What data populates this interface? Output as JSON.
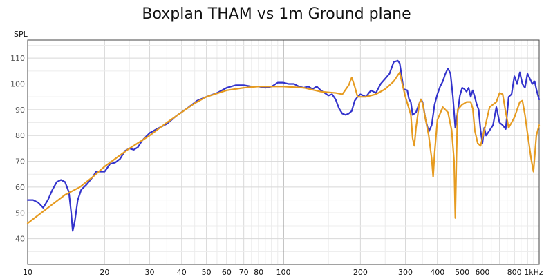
{
  "chart_data": {
    "type": "line",
    "title": "Boxplan THAM vs 1m Ground plane",
    "ylabel": "SPL",
    "xlabel": "",
    "x_scale": "log",
    "xlim": [
      10,
      1000
    ],
    "ylim": [
      30,
      117
    ],
    "grid": true,
    "x_ticks": [
      {
        "value": 10,
        "label": "10"
      },
      {
        "value": 20,
        "label": "20"
      },
      {
        "value": 30,
        "label": "30"
      },
      {
        "value": 40,
        "label": "40"
      },
      {
        "value": 50,
        "label": "50"
      },
      {
        "value": 60,
        "label": "60"
      },
      {
        "value": 70,
        "label": "70"
      },
      {
        "value": 80,
        "label": "80"
      },
      {
        "value": 100,
        "label": "100"
      },
      {
        "value": 200,
        "label": "200"
      },
      {
        "value": 300,
        "label": "300"
      },
      {
        "value": 400,
        "label": "400"
      },
      {
        "value": 500,
        "label": "500"
      },
      {
        "value": 600,
        "label": "600"
      },
      {
        "value": 800,
        "label": "800"
      },
      {
        "value": 1000,
        "label": "1kHz"
      }
    ],
    "y_ticks": [
      40,
      50,
      60,
      70,
      80,
      90,
      100,
      110
    ],
    "series": [
      {
        "color": "#3333cc",
        "points": [
          [
            10,
            55
          ],
          [
            10.5,
            55
          ],
          [
            11,
            54
          ],
          [
            11.5,
            52
          ],
          [
            12,
            55
          ],
          [
            12.5,
            59
          ],
          [
            13,
            62
          ],
          [
            13.5,
            62.8
          ],
          [
            14,
            62
          ],
          [
            14.5,
            58
          ],
          [
            14.8,
            50
          ],
          [
            15,
            43
          ],
          [
            15.3,
            47
          ],
          [
            15.7,
            55
          ],
          [
            16.2,
            59
          ],
          [
            17,
            61
          ],
          [
            18,
            64
          ],
          [
            18.5,
            66
          ],
          [
            19.5,
            66
          ],
          [
            20,
            66
          ],
          [
            21,
            69
          ],
          [
            22,
            69.5
          ],
          [
            23,
            71
          ],
          [
            24,
            74
          ],
          [
            25,
            75
          ],
          [
            26,
            74.5
          ],
          [
            27,
            75.5
          ],
          [
            28,
            78
          ],
          [
            30,
            81
          ],
          [
            32,
            82.5
          ],
          [
            35,
            84.5
          ],
          [
            38,
            87.5
          ],
          [
            42,
            90.5
          ],
          [
            46,
            93.5
          ],
          [
            50,
            95
          ],
          [
            55,
            96.5
          ],
          [
            60,
            98.5
          ],
          [
            65,
            99.5
          ],
          [
            70,
            99.5
          ],
          [
            75,
            99
          ],
          [
            80,
            99
          ],
          [
            85,
            98.5
          ],
          [
            90,
            99
          ],
          [
            95,
            100.5
          ],
          [
            100,
            100.5
          ],
          [
            105,
            100
          ],
          [
            110,
            100
          ],
          [
            115,
            99
          ],
          [
            120,
            98.5
          ],
          [
            125,
            99
          ],
          [
            130,
            98
          ],
          [
            135,
            99
          ],
          [
            140,
            97.5
          ],
          [
            150,
            95.5
          ],
          [
            155,
            96
          ],
          [
            160,
            94
          ],
          [
            165,
            90.5
          ],
          [
            170,
            88.5
          ],
          [
            175,
            88
          ],
          [
            180,
            88.5
          ],
          [
            185,
            89.5
          ],
          [
            190,
            93.5
          ],
          [
            195,
            95
          ],
          [
            200,
            96
          ],
          [
            210,
            95
          ],
          [
            220,
            97.5
          ],
          [
            230,
            96.5
          ],
          [
            240,
            100
          ],
          [
            250,
            102
          ],
          [
            260,
            104
          ],
          [
            270,
            108.5
          ],
          [
            280,
            109
          ],
          [
            285,
            108
          ],
          [
            290,
            103
          ],
          [
            295,
            98
          ],
          [
            305,
            97.5
          ],
          [
            310,
            94
          ],
          [
            315,
            93
          ],
          [
            320,
            88
          ],
          [
            330,
            89
          ],
          [
            340,
            92.5
          ],
          [
            345,
            94
          ],
          [
            350,
            93
          ],
          [
            360,
            86
          ],
          [
            370,
            81.5
          ],
          [
            380,
            84
          ],
          [
            390,
            92
          ],
          [
            400,
            96
          ],
          [
            410,
            99
          ],
          [
            420,
            101
          ],
          [
            430,
            104
          ],
          [
            440,
            106
          ],
          [
            450,
            104
          ],
          [
            460,
            95
          ],
          [
            470,
            83
          ],
          [
            480,
            89
          ],
          [
            490,
            95.5
          ],
          [
            500,
            98.5
          ],
          [
            510,
            98
          ],
          [
            520,
            97
          ],
          [
            530,
            98.5
          ],
          [
            540,
            95
          ],
          [
            550,
            97.5
          ],
          [
            560,
            95
          ],
          [
            570,
            92
          ],
          [
            580,
            90
          ],
          [
            590,
            82
          ],
          [
            600,
            77
          ],
          [
            610,
            83
          ],
          [
            620,
            80
          ],
          [
            640,
            82
          ],
          [
            660,
            84
          ],
          [
            680,
            91
          ],
          [
            700,
            85
          ],
          [
            720,
            84
          ],
          [
            740,
            82.5
          ],
          [
            760,
            95
          ],
          [
            780,
            96
          ],
          [
            800,
            103
          ],
          [
            820,
            100
          ],
          [
            840,
            104.5
          ],
          [
            860,
            100
          ],
          [
            880,
            98.5
          ],
          [
            900,
            104
          ],
          [
            920,
            102
          ],
          [
            940,
            100
          ],
          [
            960,
            101
          ],
          [
            980,
            97
          ],
          [
            1000,
            94
          ]
        ]
      },
      {
        "color": "#e69b20",
        "points": [
          [
            10,
            46
          ],
          [
            12,
            52
          ],
          [
            14,
            57
          ],
          [
            16,
            60
          ],
          [
            18,
            64
          ],
          [
            20,
            68
          ],
          [
            25,
            75
          ],
          [
            30,
            80
          ],
          [
            35,
            85
          ],
          [
            40,
            89
          ],
          [
            45,
            92.5
          ],
          [
            50,
            95
          ],
          [
            60,
            97.5
          ],
          [
            70,
            98.5
          ],
          [
            80,
            99
          ],
          [
            100,
            99
          ],
          [
            120,
            98.5
          ],
          [
            140,
            97
          ],
          [
            160,
            96.5
          ],
          [
            170,
            96
          ],
          [
            180,
            99.5
          ],
          [
            185,
            102.5
          ],
          [
            190,
            99
          ],
          [
            195,
            95
          ],
          [
            200,
            95
          ],
          [
            210,
            95
          ],
          [
            230,
            96
          ],
          [
            250,
            98
          ],
          [
            270,
            101
          ],
          [
            285,
            104.5
          ],
          [
            290,
            101
          ],
          [
            300,
            95
          ],
          [
            315,
            88
          ],
          [
            320,
            79
          ],
          [
            325,
            76
          ],
          [
            330,
            83
          ],
          [
            340,
            92.5
          ],
          [
            345,
            94
          ],
          [
            350,
            92.5
          ],
          [
            360,
            86
          ],
          [
            370,
            80
          ],
          [
            380,
            71
          ],
          [
            385,
            64
          ],
          [
            390,
            73
          ],
          [
            400,
            86
          ],
          [
            420,
            91
          ],
          [
            440,
            89
          ],
          [
            455,
            82
          ],
          [
            465,
            70
          ],
          [
            470,
            48
          ],
          [
            475,
            72
          ],
          [
            480,
            90
          ],
          [
            500,
            92
          ],
          [
            520,
            93
          ],
          [
            540,
            93
          ],
          [
            550,
            90.5
          ],
          [
            560,
            82
          ],
          [
            575,
            77
          ],
          [
            590,
            76
          ],
          [
            610,
            82
          ],
          [
            640,
            91
          ],
          [
            680,
            93
          ],
          [
            700,
            96.5
          ],
          [
            720,
            96
          ],
          [
            740,
            89
          ],
          [
            760,
            83
          ],
          [
            800,
            87
          ],
          [
            840,
            93
          ],
          [
            860,
            93.5
          ],
          [
            880,
            88
          ],
          [
            900,
            81
          ],
          [
            930,
            71
          ],
          [
            950,
            66
          ],
          [
            975,
            80
          ],
          [
            1000,
            84
          ]
        ]
      }
    ]
  }
}
